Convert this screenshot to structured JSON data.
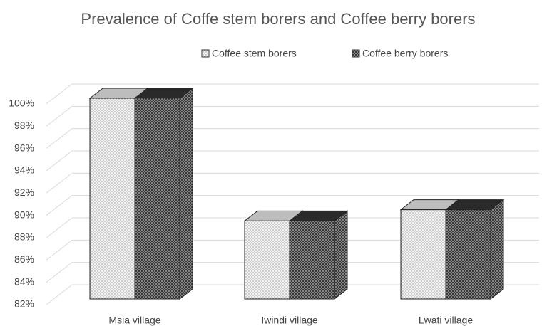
{
  "chart_data": {
    "type": "bar3d",
    "title": "Prevalence of Coffe stem borers and Coffee berry borers",
    "categories": [
      "Msia village",
      "Iwindi village",
      "Lwati village"
    ],
    "series": [
      {
        "name": "Coffee stem borers",
        "color": "#f2f2f2",
        "values": [
          100,
          89,
          90
        ]
      },
      {
        "name": "Coffee berry borers",
        "color": "#3a3a3a",
        "values": [
          100,
          89,
          90
        ]
      }
    ],
    "ylim": [
      82,
      100
    ],
    "yticks": [
      {
        "value": 82,
        "label": "82%"
      },
      {
        "value": 84,
        "label": "84%"
      },
      {
        "value": 86,
        "label": "86%"
      },
      {
        "value": 88,
        "label": "88%"
      },
      {
        "value": 90,
        "label": "90%"
      },
      {
        "value": 92,
        "label": "92%"
      },
      {
        "value": 94,
        "label": "94%"
      },
      {
        "value": 96,
        "label": "96%"
      },
      {
        "value": 98,
        "label": "98%"
      },
      {
        "value": 100,
        "label": "100%"
      }
    ],
    "grid": true,
    "legend": "top"
  }
}
